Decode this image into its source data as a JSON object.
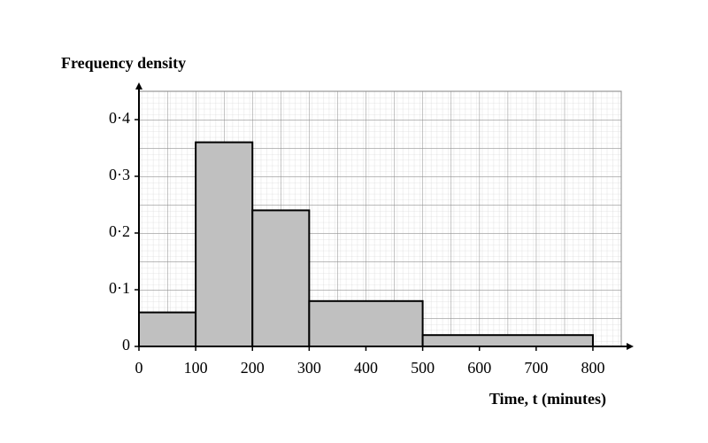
{
  "chart_data": {
    "type": "histogram",
    "ylabel": "Frequency density",
    "xlabel": "Time, t (minutes)",
    "bins": [
      0,
      100,
      200,
      300,
      500,
      800
    ],
    "values": [
      0.06,
      0.36,
      0.24,
      0.08,
      0.02
    ],
    "color": "#c0c0c0",
    "xlim": [
      0,
      850
    ],
    "ylim": [
      0,
      0.45
    ],
    "xticks": [
      0,
      100,
      200,
      300,
      400,
      500,
      600,
      700,
      800
    ],
    "yticks": [
      0,
      {
        "value": 0.1,
        "label": "0·1"
      },
      {
        "value": 0.2,
        "label": "0·2"
      },
      {
        "value": 0.3,
        "label": "0·3"
      },
      {
        "value": 0.4,
        "label": "0·4"
      }
    ],
    "grid": true
  }
}
